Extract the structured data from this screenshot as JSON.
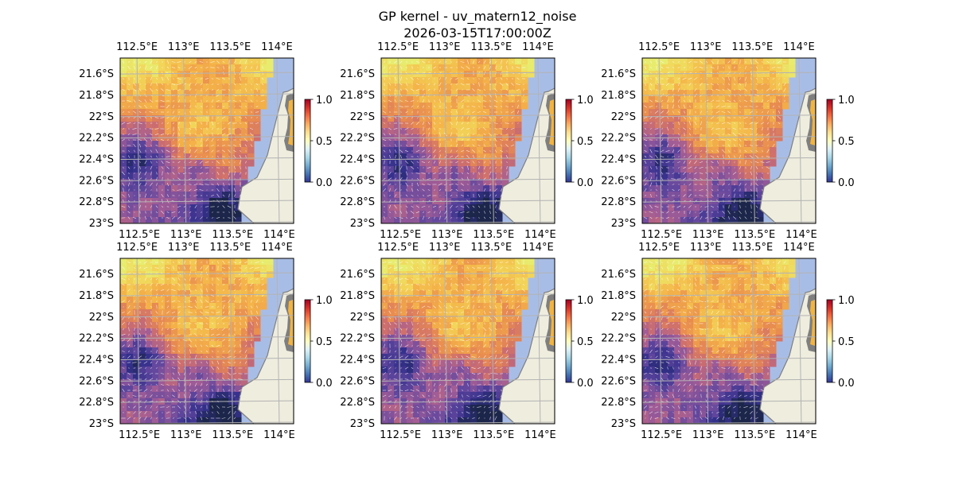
{
  "figure": {
    "title_line1": "GP kernel - uv_matern12_noise",
    "title_line2": "2026-03-15T17:00:00Z"
  },
  "map_axes": {
    "lon_labels": [
      "112.5°E",
      "113°E",
      "113.5°E",
      "114°E"
    ],
    "lon_values": [
      112.5,
      113,
      113.5,
      114
    ],
    "lat_labels": [
      "21.6°S",
      "21.8°S",
      "22°S",
      "22.2°S",
      "22.4°S",
      "22.6°S",
      "22.8°S",
      "23°S"
    ],
    "lat_values": [
      -21.6,
      -21.8,
      -22.0,
      -22.2,
      -22.4,
      -22.6,
      -22.8,
      -23.0
    ],
    "lon_range": [
      112.32,
      114.18
    ],
    "lat_range": [
      -23.0,
      -21.45
    ]
  },
  "colorbars": [
    {
      "ticks": [
        "0.0",
        "0.5",
        "1.0"
      ],
      "colormap": "RdYlBu_r",
      "range": [
        0,
        1
      ]
    },
    {
      "ticks": [
        "0.0",
        "0.5",
        "1.0"
      ],
      "colormap": "RdYlBu_r",
      "range": [
        0,
        1
      ]
    },
    {
      "ticks": [
        "0.0",
        "0.5",
        "1.0"
      ],
      "colormap": "RdYlBu_r",
      "range": [
        0,
        1
      ]
    },
    {
      "ticks": [
        "0.0",
        "0.5",
        "1.0"
      ],
      "colormap": "RdYlBu_r",
      "range": [
        0,
        1
      ]
    },
    {
      "ticks": [
        "0.0",
        "0.5",
        "1.0"
      ],
      "colormap": "RdYlBu_r",
      "range": [
        0,
        1
      ]
    },
    {
      "ticks": [
        "0.0",
        "0.5",
        "1.0"
      ],
      "colormap": "RdYlBu_r",
      "range": [
        0,
        1
      ]
    }
  ],
  "panels_count": 6,
  "colors": {
    "land": "#efedde",
    "ocean": "#a8bde6",
    "gridlines": "#b3b3b3",
    "coast": "#7f7f7f",
    "vectors": "#ffffff",
    "colorbar_low": "#313695",
    "colorbar_mid": "#ffffbf",
    "colorbar_high": "#a50026"
  },
  "layers": [
    "gp-mean-field",
    "wind-vectors",
    "coastline",
    "lat-lon-gridlines"
  ]
}
